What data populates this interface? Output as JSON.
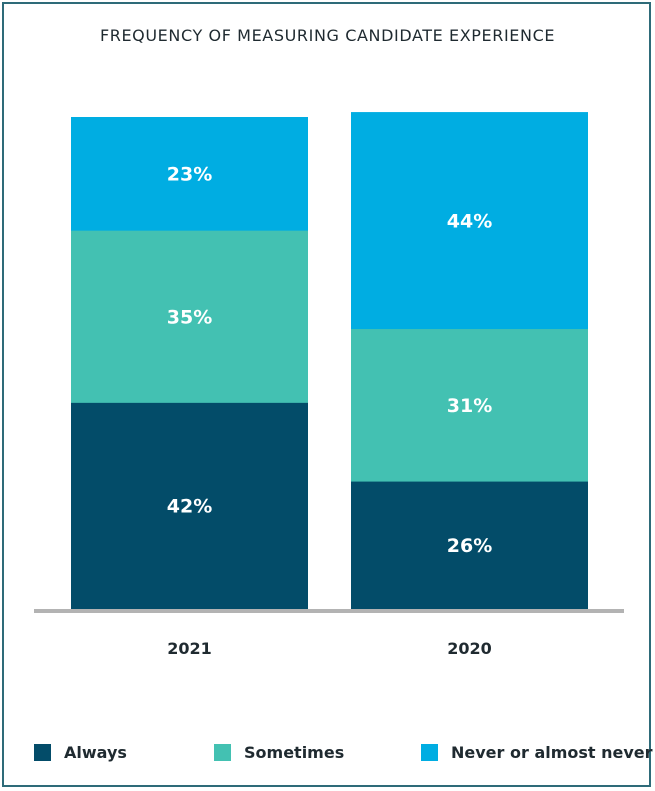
{
  "chart_data": {
    "type": "bar",
    "stacked": true,
    "title": "FREQUENCY OF MEASURING CANDIDATE EXPERIENCE",
    "categories": [
      "2021",
      "2020"
    ],
    "series": [
      {
        "name": "Always",
        "color": "#034c69",
        "values": [
          42,
          26
        ],
        "labels": [
          "42%",
          "26%"
        ]
      },
      {
        "name": "Sometimes",
        "color": "#43c1b2",
        "values": [
          35,
          31
        ],
        "labels": [
          "35%",
          "31%"
        ]
      },
      {
        "name": "Never or almost never",
        "color": "#00ade2",
        "values": [
          23,
          44
        ],
        "labels": [
          "23%",
          "44%"
        ]
      }
    ],
    "ylim": [
      0,
      100
    ],
    "grid": false,
    "legend": "bottom"
  },
  "colors": {
    "frame": "#2e6b79",
    "baseline": "#b3b3b3",
    "label_text": "#ffffff"
  }
}
